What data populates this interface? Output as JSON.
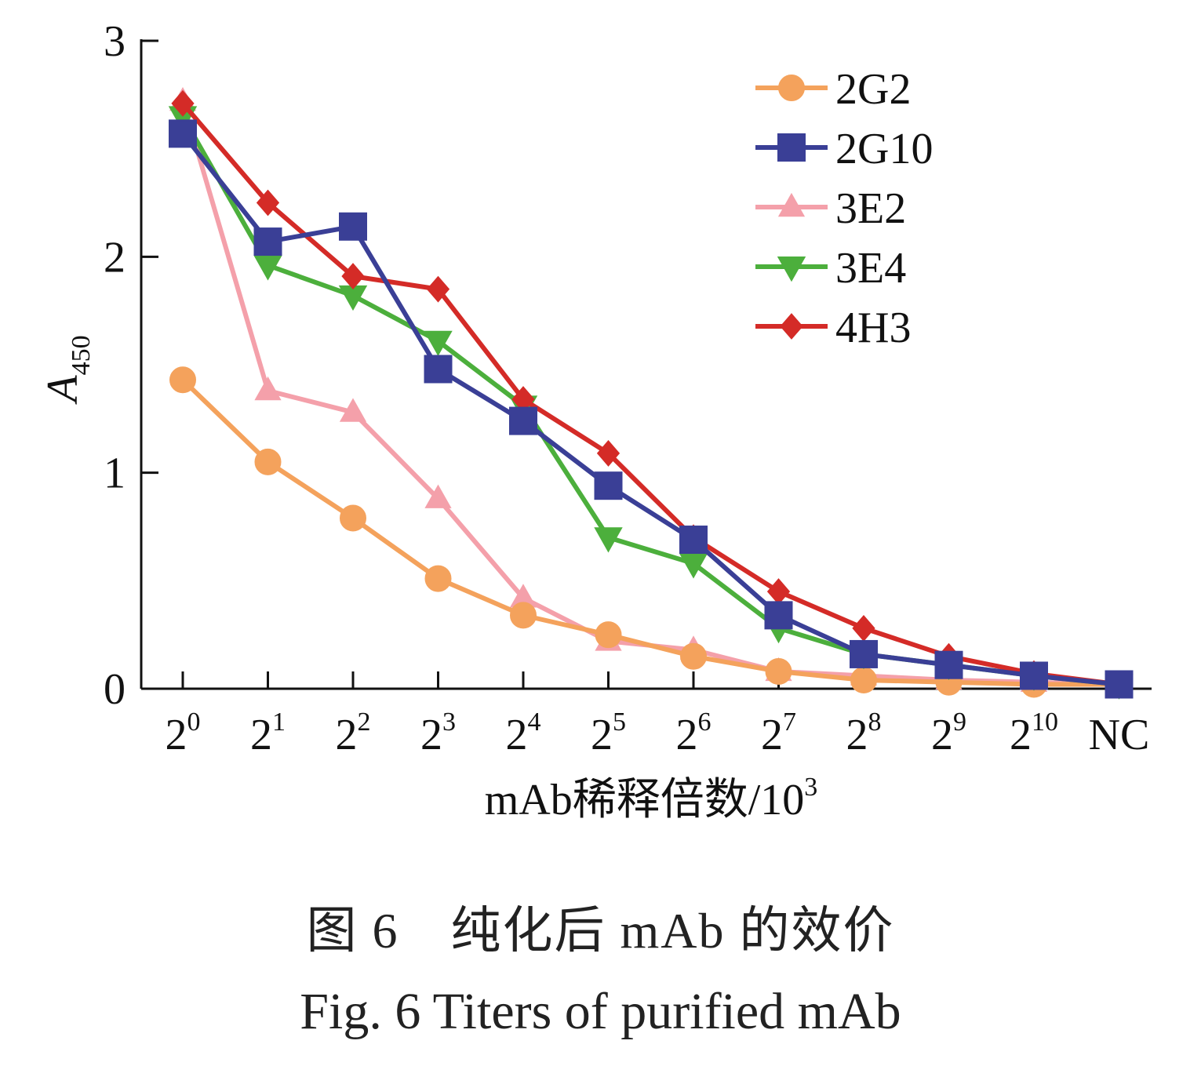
{
  "chart_data": {
    "type": "line",
    "xlabel": "mAb稀释倍数/10",
    "xlabel_sup": "3",
    "ylabel": "A",
    "ylabel_sub": "450",
    "ylim": [
      0,
      3
    ],
    "yticks": [
      0,
      1,
      2,
      3
    ],
    "categories": [
      {
        "base": "2",
        "sup": "0"
      },
      {
        "base": "2",
        "sup": "1"
      },
      {
        "base": "2",
        "sup": "2"
      },
      {
        "base": "2",
        "sup": "3"
      },
      {
        "base": "2",
        "sup": "4"
      },
      {
        "base": "2",
        "sup": "5"
      },
      {
        "base": "2",
        "sup": "6"
      },
      {
        "base": "2",
        "sup": "7"
      },
      {
        "base": "2",
        "sup": "8"
      },
      {
        "base": "2",
        "sup": "9"
      },
      {
        "base": "2",
        "sup": "10"
      },
      {
        "base": "NC",
        "sup": ""
      }
    ],
    "legend_position": "top-right",
    "grid": false,
    "series": [
      {
        "name": "2G2",
        "color": "#f4a25c",
        "marker": "circle",
        "values": [
          1.43,
          1.05,
          0.79,
          0.51,
          0.34,
          0.25,
          0.15,
          0.08,
          0.04,
          0.03,
          0.02,
          0.02
        ]
      },
      {
        "name": "2G10",
        "color": "#3a3f96",
        "marker": "square",
        "values": [
          2.57,
          2.07,
          2.14,
          1.48,
          1.24,
          0.94,
          0.69,
          0.34,
          0.16,
          0.11,
          0.06,
          0.02
        ]
      },
      {
        "name": "3E2",
        "color": "#f4a0aa",
        "marker": "triangle-up",
        "values": [
          2.72,
          1.38,
          1.28,
          0.88,
          0.42,
          0.22,
          0.18,
          0.08,
          0.06,
          0.04,
          0.03,
          0.02
        ]
      },
      {
        "name": "3E4",
        "color": "#4caf3c",
        "marker": "triangle-down",
        "values": [
          2.65,
          1.96,
          1.82,
          1.61,
          1.31,
          0.7,
          0.58,
          0.28,
          0.16,
          0.11,
          0.06,
          0.02
        ]
      },
      {
        "name": "4H3",
        "color": "#d42b27",
        "marker": "diamond",
        "values": [
          2.71,
          2.25,
          1.91,
          1.85,
          1.34,
          1.09,
          0.7,
          0.45,
          0.28,
          0.15,
          0.07,
          0.02
        ]
      }
    ]
  },
  "caption": {
    "cn": "图 6　纯化后 mAb 的效价",
    "en": "Fig. 6   Titers of purified mAb"
  }
}
